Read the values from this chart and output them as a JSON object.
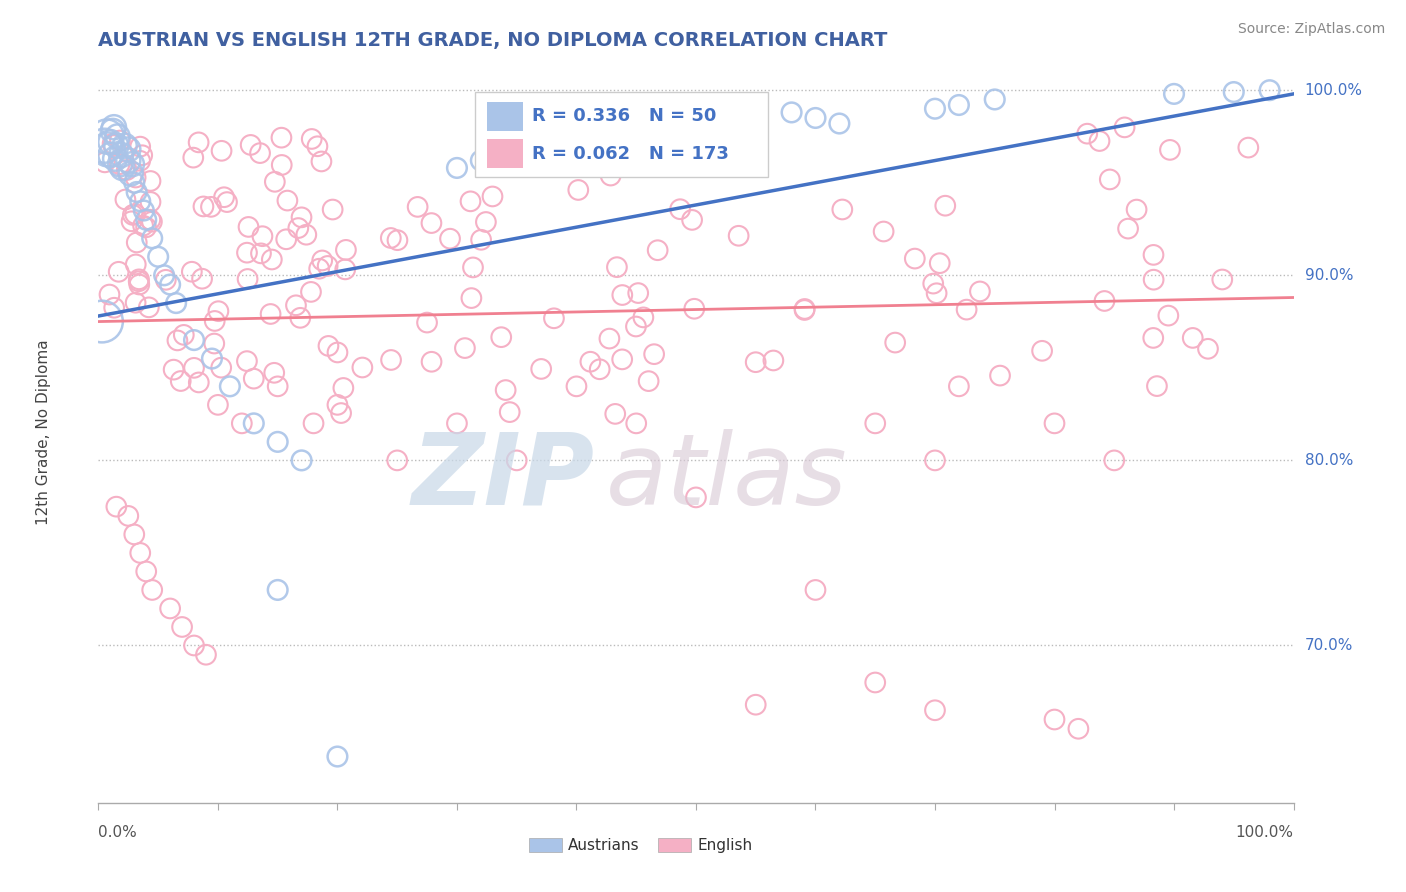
{
  "title": "AUSTRIAN VS ENGLISH 12TH GRADE, NO DIPLOMA CORRELATION CHART",
  "source_text": "Source: ZipAtlas.com",
  "ylabel": "12th Grade, No Diploma",
  "legend_blue_r": "R = 0.336",
  "legend_blue_n": "N = 50",
  "legend_pink_r": "R = 0.062",
  "legend_pink_n": "N = 173",
  "legend_blue_label": "Austrians",
  "legend_pink_label": "English",
  "blue_color": "#aac4e8",
  "pink_color": "#f5b0c5",
  "blue_edge_color": "#aac4e8",
  "pink_edge_color": "#f5b0c5",
  "blue_line_color": "#4472c4",
  "pink_line_color": "#f08090",
  "title_color": "#4060a0",
  "watermark_zip": "ZIP",
  "watermark_atlas": "atlas",
  "watermark_color_zip": "#c5d5e5",
  "watermark_color_atlas": "#d0c0d0",
  "background_color": "#ffffff",
  "grid_color": "#bbbbbb",
  "right_tick_color": "#4472c4",
  "xlim": [
    0.0,
    1.0
  ],
  "ylim": [
    0.615,
    1.015
  ],
  "ytick_vals": [
    0.7,
    0.8,
    0.9,
    1.0
  ],
  "ytick_labels": [
    "70.0%",
    "80.0%",
    "90.0%",
    "100.0%"
  ],
  "xtick_labels": [
    "0.0%",
    "100.0%"
  ],
  "aus_trend_x0": 0.0,
  "aus_trend_y0": 0.878,
  "aus_trend_x1": 1.0,
  "aus_trend_y1": 0.998,
  "eng_trend_x0": 0.0,
  "eng_trend_y0": 0.875,
  "eng_trend_x1": 1.0,
  "eng_trend_y1": 0.888
}
